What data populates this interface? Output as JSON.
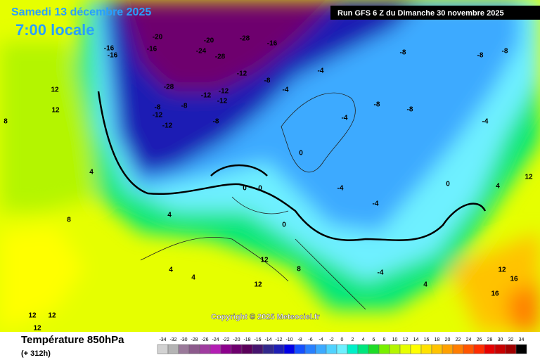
{
  "header": {
    "date": "Samedi 13 décembre 2025",
    "time": "7:00 locale",
    "run": "Run GFS 6 Z du Dimanche 30 novembre 2025",
    "copyright": "Copyright © 2025 Meteociel.fr"
  },
  "map_labels": [
    -20,
    -16,
    -16,
    -16,
    -20,
    -24,
    -28,
    -28,
    -16,
    -12,
    -28,
    -12,
    -12,
    -12,
    -8,
    -8,
    -12,
    -12,
    -8,
    -8,
    -4,
    -4,
    -8,
    -8,
    -8,
    -8,
    -8,
    -4,
    -4,
    0,
    0,
    0,
    -4,
    -4,
    0,
    0,
    4,
    8,
    12,
    12,
    4,
    4,
    8,
    12,
    12,
    12,
    12,
    12,
    16,
    16,
    12,
    12,
    4,
    -4,
    8,
    4,
    4
  ],
  "legend": {
    "title": "Température 850hPa",
    "lead": "(+ 312h)",
    "ticks": [
      -34,
      -32,
      -30,
      -28,
      -26,
      -24,
      -22,
      -20,
      -18,
      -16,
      -14,
      -12,
      -10,
      -8,
      -6,
      -4,
      -2,
      0,
      2,
      4,
      6,
      8,
      10,
      12,
      14,
      16,
      18,
      20,
      22,
      24,
      26,
      28,
      30,
      32,
      34
    ],
    "colors": [
      "#d2d2d2",
      "#b4b4b4",
      "#9a7a9a",
      "#8c5a8c",
      "#a03ca0",
      "#b41eb4",
      "#8c008c",
      "#6e006e",
      "#5a005a",
      "#46146e",
      "#32288c",
      "#1e1eb4",
      "#0000e6",
      "#1450ff",
      "#2880ff",
      "#3caaff",
      "#50d2ff",
      "#6ef0ff",
      "#00f0c8",
      "#00e67d",
      "#1edc28",
      "#78f000",
      "#b4f500",
      "#e6ff00",
      "#ffff00",
      "#ffe100",
      "#ffc300",
      "#ffa000",
      "#ff7d00",
      "#ff5500",
      "#ff2d00",
      "#e60000",
      "#c80000",
      "#a00000",
      "#000000"
    ]
  }
}
